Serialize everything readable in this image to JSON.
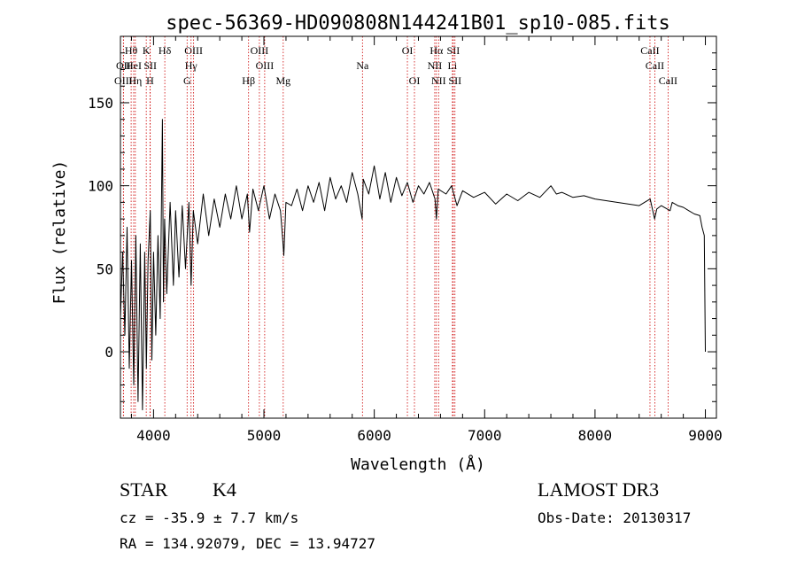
{
  "chart_data": {
    "type": "line",
    "title": "spec-56369-HD090808N144241B01_sp10-085.fits",
    "xlabel": "Wavelength (Å)",
    "ylabel": "Flux (relative)",
    "xlim": [
      3700,
      9100
    ],
    "ylim": [
      -40,
      190
    ],
    "xticks": [
      4000,
      5000,
      6000,
      7000,
      8000,
      9000
    ],
    "xtick_labels": [
      "4000",
      "5000",
      "6000",
      "7000",
      "8000",
      "9000"
    ],
    "yticks": [
      0,
      50,
      100,
      150
    ],
    "ytick_labels": [
      "0",
      "50",
      "100",
      "150"
    ],
    "grid": false,
    "series": [
      {
        "name": "flux",
        "points": [
          [
            3700,
            20
          ],
          [
            3720,
            60
          ],
          [
            3740,
            10
          ],
          [
            3760,
            75
          ],
          [
            3780,
            -10
          ],
          [
            3800,
            55
          ],
          [
            3820,
            -20
          ],
          [
            3840,
            70
          ],
          [
            3860,
            -30
          ],
          [
            3880,
            65
          ],
          [
            3900,
            -35
          ],
          [
            3920,
            60
          ],
          [
            3935,
            -10
          ],
          [
            3950,
            55
          ],
          [
            3970,
            85
          ],
          [
            3985,
            -5
          ],
          [
            4000,
            60
          ],
          [
            4020,
            10
          ],
          [
            4040,
            70
          ],
          [
            4060,
            20
          ],
          [
            4080,
            140
          ],
          [
            4090,
            30
          ],
          [
            4100,
            80
          ],
          [
            4120,
            35
          ],
          [
            4150,
            90
          ],
          [
            4180,
            40
          ],
          [
            4200,
            85
          ],
          [
            4230,
            45
          ],
          [
            4260,
            88
          ],
          [
            4290,
            50
          ],
          [
            4320,
            90
          ],
          [
            4340,
            40
          ],
          [
            4360,
            85
          ],
          [
            4400,
            65
          ],
          [
            4450,
            95
          ],
          [
            4500,
            70
          ],
          [
            4550,
            92
          ],
          [
            4600,
            75
          ],
          [
            4650,
            95
          ],
          [
            4700,
            80
          ],
          [
            4750,
            100
          ],
          [
            4800,
            80
          ],
          [
            4850,
            95
          ],
          [
            4870,
            72
          ],
          [
            4900,
            98
          ],
          [
            4950,
            85
          ],
          [
            5000,
            100
          ],
          [
            5050,
            80
          ],
          [
            5100,
            95
          ],
          [
            5150,
            85
          ],
          [
            5170,
            68
          ],
          [
            5180,
            58
          ],
          [
            5200,
            90
          ],
          [
            5250,
            88
          ],
          [
            5300,
            98
          ],
          [
            5350,
            85
          ],
          [
            5400,
            100
          ],
          [
            5450,
            90
          ],
          [
            5500,
            102
          ],
          [
            5550,
            85
          ],
          [
            5600,
            105
          ],
          [
            5650,
            92
          ],
          [
            5700,
            100
          ],
          [
            5750,
            90
          ],
          [
            5800,
            108
          ],
          [
            5850,
            95
          ],
          [
            5890,
            80
          ],
          [
            5900,
            104
          ],
          [
            5950,
            95
          ],
          [
            6000,
            112
          ],
          [
            6050,
            92
          ],
          [
            6100,
            108
          ],
          [
            6150,
            90
          ],
          [
            6200,
            105
          ],
          [
            6250,
            94
          ],
          [
            6300,
            102
          ],
          [
            6350,
            90
          ],
          [
            6400,
            100
          ],
          [
            6450,
            95
          ],
          [
            6500,
            102
          ],
          [
            6550,
            92
          ],
          [
            6563,
            80
          ],
          [
            6580,
            98
          ],
          [
            6650,
            95
          ],
          [
            6700,
            100
          ],
          [
            6750,
            88
          ],
          [
            6800,
            97
          ],
          [
            6900,
            93
          ],
          [
            7000,
            96
          ],
          [
            7100,
            89
          ],
          [
            7200,
            95
          ],
          [
            7300,
            91
          ],
          [
            7400,
            96
          ],
          [
            7500,
            93
          ],
          [
            7600,
            100
          ],
          [
            7650,
            95
          ],
          [
            7700,
            96
          ],
          [
            7800,
            93
          ],
          [
            7900,
            94
          ],
          [
            8000,
            92
          ],
          [
            8100,
            91
          ],
          [
            8200,
            90
          ],
          [
            8300,
            89
          ],
          [
            8400,
            88
          ],
          [
            8500,
            92
          ],
          [
            8540,
            80
          ],
          [
            8560,
            86
          ],
          [
            8600,
            88
          ],
          [
            8680,
            85
          ],
          [
            8700,
            90
          ],
          [
            8750,
            88
          ],
          [
            8800,
            87
          ],
          [
            8850,
            85
          ],
          [
            8900,
            83
          ],
          [
            8950,
            82
          ],
          [
            8970,
            75
          ],
          [
            8990,
            70
          ],
          [
            9000,
            0
          ]
        ]
      }
    ],
    "lines": [
      {
        "label": "OII",
        "x": 3727,
        "row": 2
      },
      {
        "label": "OIII",
        "x": 3727,
        "row": 3
      },
      {
        "label": "Hθ",
        "x": 3797,
        "row": 1
      },
      {
        "label": "HeI",
        "x": 3820,
        "row": 2
      },
      {
        "label": "Hη",
        "x": 3835,
        "row": 3
      },
      {
        "label": "K",
        "x": 3934,
        "row": 1
      },
      {
        "label": "SII",
        "x": 3970,
        "row": 2
      },
      {
        "label": "H",
        "x": 3968,
        "row": 3
      },
      {
        "label": "Hδ",
        "x": 4102,
        "row": 1
      },
      {
        "label": "OIII",
        "x": 4363,
        "row": 1
      },
      {
        "label": "Hγ",
        "x": 4340,
        "row": 2
      },
      {
        "label": "G",
        "x": 4304,
        "row": 3
      },
      {
        "label": "Hβ",
        "x": 4861,
        "row": 3
      },
      {
        "label": "OIII",
        "x": 4959,
        "row": 1
      },
      {
        "label": "OIII",
        "x": 5007,
        "row": 2
      },
      {
        "label": "Mg",
        "x": 5175,
        "row": 3
      },
      {
        "label": "Na",
        "x": 5893,
        "row": 2
      },
      {
        "label": "OI",
        "x": 6300,
        "row": 1
      },
      {
        "label": "OI",
        "x": 6364,
        "row": 3
      },
      {
        "label": "Hα",
        "x": 6563,
        "row": 1
      },
      {
        "label": "NII",
        "x": 6548,
        "row": 2
      },
      {
        "label": "NII",
        "x": 6583,
        "row": 3
      },
      {
        "label": "SII",
        "x": 6716,
        "row": 1
      },
      {
        "label": "Li",
        "x": 6708,
        "row": 2
      },
      {
        "label": "SII",
        "x": 6731,
        "row": 3
      },
      {
        "label": "CaII",
        "x": 8498,
        "row": 1
      },
      {
        "label": "CaII",
        "x": 8542,
        "row": 2
      },
      {
        "label": "CaII",
        "x": 8662,
        "row": 3
      }
    ]
  },
  "info": {
    "class_label": "STAR",
    "subclass": "K4",
    "survey": "LAMOST DR3",
    "redshift": "cz = -35.9 ± 7.7 km/s",
    "obs_date": "Obs-Date: 20130317",
    "coords": "RA = 134.92079, DEC =  13.94727"
  }
}
